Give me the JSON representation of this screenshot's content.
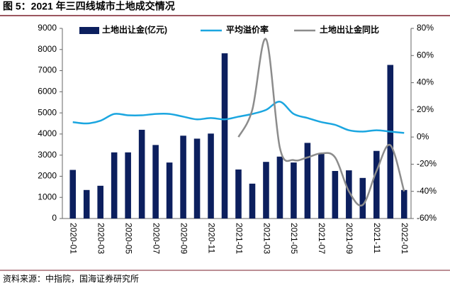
{
  "chart_data": {
    "type": "bar_line",
    "title": "图 5：2021 年三四线城市土地成交情况",
    "source": "资料来源：中指院，国海证券研究所",
    "categories": [
      "2020-01",
      null,
      "2020-03",
      null,
      "2020-05",
      null,
      "2020-07",
      null,
      "2020-09",
      null,
      "2020-11",
      null,
      "2021-01",
      null,
      "2021-03",
      null,
      "2021-05",
      null,
      "2021-07",
      null,
      "2021-09",
      null,
      "2021-11",
      null,
      "2022-01"
    ],
    "series": [
      {
        "name": "土地出让金(亿元)",
        "type": "bar",
        "color": "#0c1f5e",
        "axis": "y",
        "values": [
          2300,
          1350,
          1550,
          3130,
          3130,
          4200,
          3480,
          2650,
          3920,
          3780,
          4020,
          7820,
          2320,
          1650,
          2680,
          2930,
          2650,
          3580,
          3100,
          2250,
          2280,
          1920,
          3200,
          7270,
          1350
        ]
      },
      {
        "name": "平均溢价率",
        "type": "line",
        "color": "#1ba6e0",
        "axis": "y2",
        "values": [
          11,
          10,
          12,
          17,
          16,
          16,
          17,
          17,
          15,
          13,
          14,
          13,
          15,
          17,
          20,
          26,
          17,
          14,
          11,
          9,
          5,
          4,
          5,
          4,
          3
        ]
      },
      {
        "name": "土地出让金同比",
        "type": "line",
        "color": "#8c8c8c",
        "axis": "y2",
        "values": [
          null,
          null,
          null,
          null,
          null,
          null,
          null,
          null,
          null,
          null,
          null,
          null,
          0,
          20,
          72,
          -8,
          -17,
          -15,
          -12,
          -15,
          -40,
          -50,
          -25,
          -6,
          -40
        ]
      }
    ],
    "ylim": [
      0,
      9000
    ],
    "yticks": [
      0,
      1000,
      2000,
      3000,
      4000,
      5000,
      6000,
      7000,
      8000,
      9000
    ],
    "y2lim": [
      -60,
      80
    ],
    "y2ticks": [
      {
        "value": -60,
        "label": "-60%"
      },
      {
        "value": -40,
        "label": "-40%"
      },
      {
        "value": -20,
        "label": "-20%"
      },
      {
        "value": 0,
        "label": "0%"
      },
      {
        "value": 20,
        "label": "20%"
      },
      {
        "value": 40,
        "label": "40%"
      },
      {
        "value": 60,
        "label": "60%"
      },
      {
        "value": 80,
        "label": "80%"
      }
    ],
    "legend": "top"
  }
}
